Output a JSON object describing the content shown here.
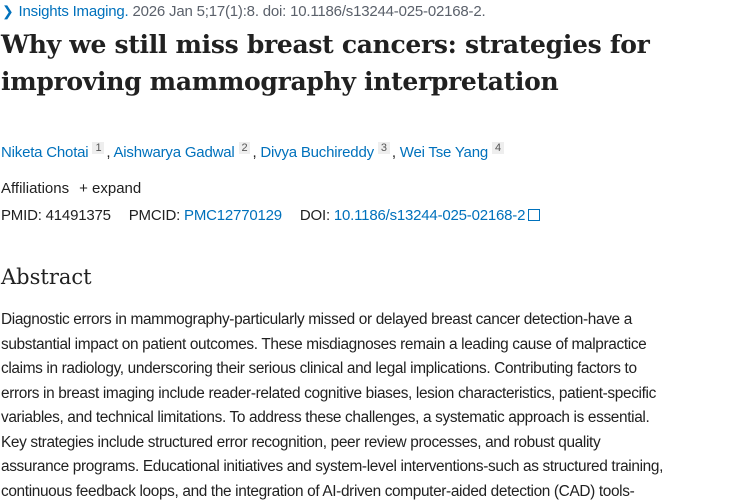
{
  "citation": {
    "journal": "Insights Imaging.",
    "details": " 2026 Jan 5;17(1):8. doi: 10.1186/s13244-025-02168-2."
  },
  "title_lines": [
    "Why we still miss breast cancers: strategies for",
    "improving mammography interpretation"
  ],
  "authors": [
    {
      "name": "Niketa Chotai",
      "aff": "1"
    },
    {
      "name": "Aishwarya Gadwal",
      "aff": "2"
    },
    {
      "name": "Divya Buchireddy",
      "aff": "3"
    },
    {
      "name": "Wei Tse Yang",
      "aff": "4"
    }
  ],
  "affiliations": {
    "label": "Affiliations",
    "expand": "+ expand"
  },
  "ids": {
    "pmid_label": "PMID:",
    "pmid": "41491375",
    "pmcid_label": "PMCID:",
    "pmcid": "PMC12770129",
    "doi_label": "DOI:",
    "doi": "10.1186/s13244-025-02168-2"
  },
  "abstract": {
    "heading": "Abstract",
    "lines": [
      "Diagnostic errors in mammography-particularly missed or delayed breast cancer detection-have a",
      "substantial impact on patient outcomes. These misdiagnoses remain a leading cause of malpractice",
      "claims in radiology, underscoring their serious clinical and legal implications. Contributing factors to",
      "errors in breast imaging include reader-related cognitive biases, lesion characteristics, patient-specific",
      "variables, and technical limitations. To address these challenges, a systematic approach is essential.",
      "Key strategies include structured error recognition, peer review processes, and robust quality",
      "assurance programs. Educational initiatives and system-level interventions-such as structured training,",
      "continuous feedback loops, and the integration of AI-driven computer-aided detection (CAD) tools-"
    ]
  }
}
